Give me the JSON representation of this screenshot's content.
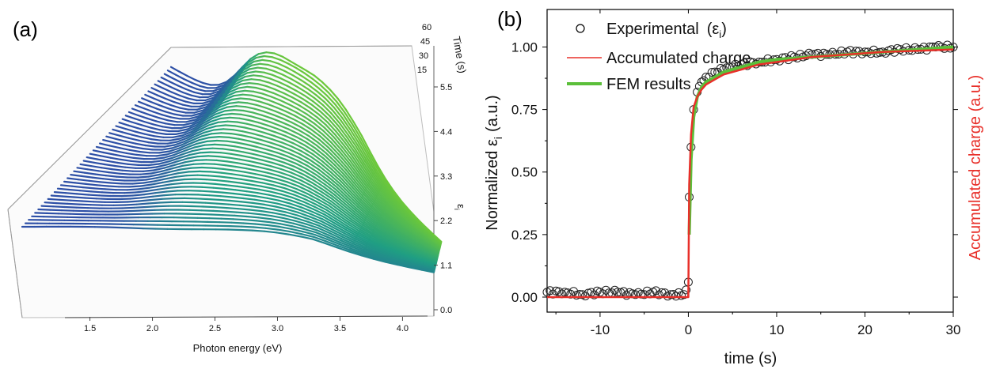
{
  "panels": {
    "a": {
      "label": "(a)",
      "chart_data": {
        "type": "area",
        "xlabel": "Photon energy (eV)",
        "ylabel": "ε",
        "ylabel_sub": "i",
        "zlabel": "Time (s)",
        "x_ticks": [
          "1.5",
          "2.0",
          "2.5",
          "3.0",
          "3.5",
          "4.0"
        ],
        "y_ticks": [
          "0.0",
          "1.1",
          "2.2",
          "3.3",
          "4.4",
          "5.5"
        ],
        "z_ticks": [
          "15",
          "30",
          "45",
          "60"
        ],
        "xlim": [
          1.3,
          4.2
        ],
        "ylim": [
          0,
          5.5
        ],
        "zlim": [
          0,
          60
        ],
        "colors": {
          "front": "#2d4fa6",
          "mid": "#1f9e83",
          "back": "#6cc83a"
        }
      }
    },
    "b": {
      "label": "(b)",
      "chart_data": {
        "type": "line",
        "xlabel": "time (s)",
        "ylabel": "Normalized ε",
        "ylabel_sub": "i",
        "ylabel_suffix": "(a.u.)",
        "right_ylabel": "Accumulated charge (a.u.)",
        "xlim": [
          -16,
          30
        ],
        "ylim": [
          -0.06,
          1.15
        ],
        "x_ticks": [
          "-10",
          "0",
          "10",
          "20",
          "30"
        ],
        "y_ticks": [
          "0.00",
          "0.25",
          "0.50",
          "0.75",
          "1.00"
        ],
        "legend": [
          {
            "text": "Experimental",
            "suffix_open": "(ε",
            "suffix_sub": "i",
            "suffix_close": ")",
            "style": "circle",
            "color": "#000000"
          },
          {
            "text": "Accumulated charge",
            "style": "line",
            "color": "#e8302a"
          },
          {
            "text": "FEM results",
            "style": "line",
            "color": "#5bbf3a"
          }
        ],
        "series": [
          {
            "name": "Experimental",
            "style": "scatter",
            "x": [
              -16,
              -14,
              -12,
              -10,
              -8,
              -6,
              -4,
              -2,
              -0.5,
              0,
              0.1,
              0.3,
              0.6,
              1,
              1.5,
              2,
              3,
              4,
              5,
              6,
              8,
              10,
              12,
              14,
              16,
              18,
              20,
              22,
              24,
              26,
              28,
              30
            ],
            "y": [
              0.02,
              0.02,
              0.01,
              0.02,
              0.02,
              0.01,
              0.02,
              0.01,
              0.01,
              0.06,
              0.4,
              0.6,
              0.75,
              0.82,
              0.86,
              0.88,
              0.9,
              0.91,
              0.92,
              0.93,
              0.94,
              0.95,
              0.96,
              0.97,
              0.97,
              0.98,
              0.98,
              0.98,
              0.99,
              0.99,
              1.0,
              1.0
            ]
          },
          {
            "name": "Accumulated charge",
            "style": "line",
            "color": "#e8302a",
            "x": [
              -16,
              -0.05,
              0,
              0.1,
              0.3,
              0.6,
              1,
              1.5,
              2,
              3,
              4,
              6,
              8,
              10,
              14,
              18,
              22,
              26,
              30
            ],
            "y": [
              0.0,
              0.0,
              0.0,
              0.45,
              0.65,
              0.76,
              0.8,
              0.83,
              0.85,
              0.87,
              0.89,
              0.91,
              0.93,
              0.94,
              0.96,
              0.97,
              0.98,
              0.985,
              0.99
            ]
          },
          {
            "name": "FEM results",
            "style": "line",
            "color": "#5bbf3a",
            "x": [
              0.1,
              0.3,
              0.6,
              1,
              1.5,
              2,
              3,
              4,
              6,
              8,
              10,
              14,
              18,
              22,
              26,
              30
            ],
            "y": [
              0.25,
              0.55,
              0.72,
              0.8,
              0.84,
              0.86,
              0.88,
              0.9,
              0.92,
              0.94,
              0.95,
              0.96,
              0.97,
              0.98,
              0.99,
              1.0
            ]
          }
        ]
      }
    }
  }
}
